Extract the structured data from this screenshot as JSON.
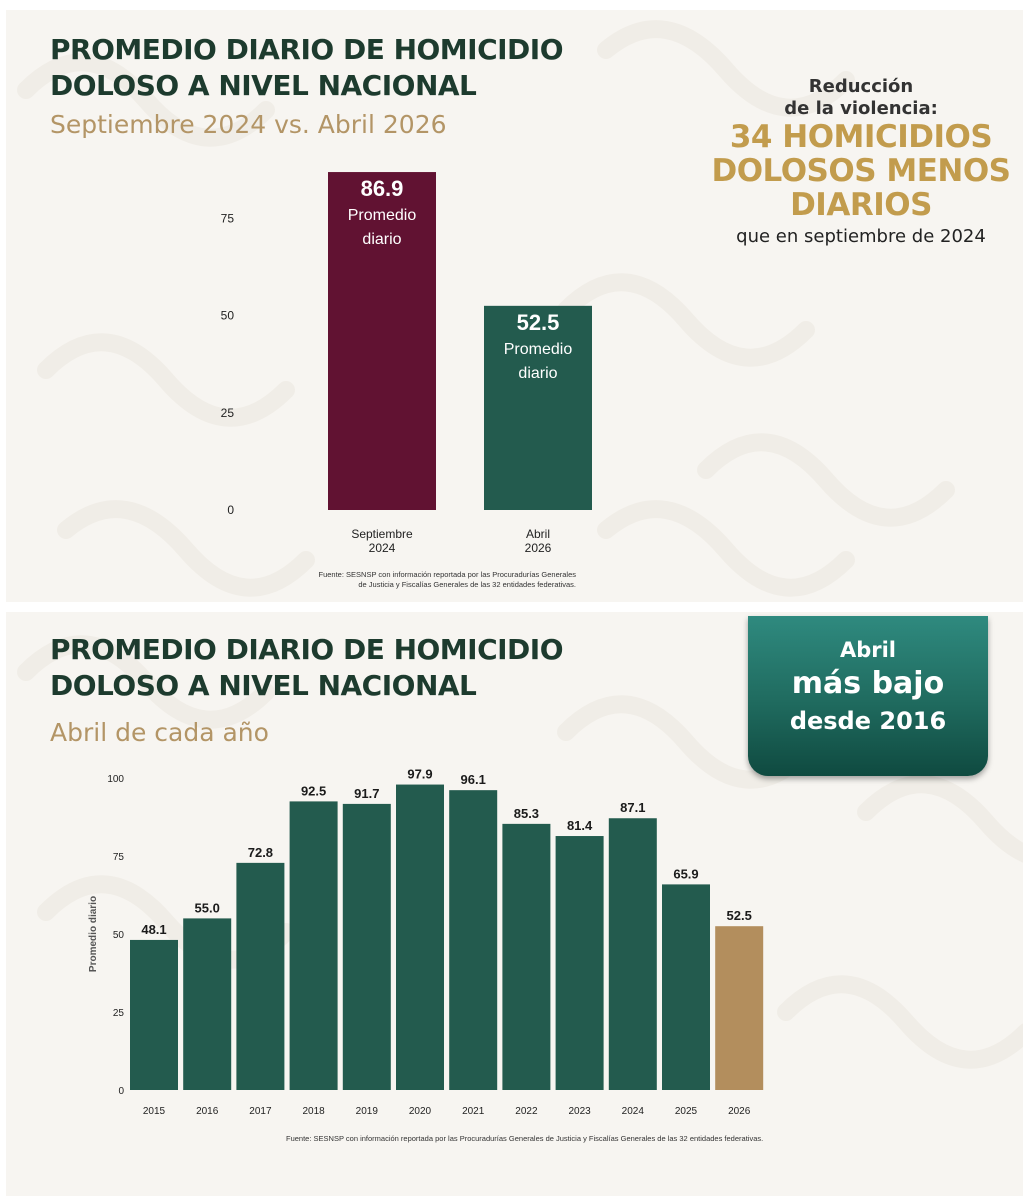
{
  "panel1": {
    "title_line1": "PROMEDIO DIARIO DE HOMICIDIO",
    "title_line2": "DOLOSO A NIVEL NACIONAL",
    "subtitle": "Septiembre 2024 vs. Abril 2026",
    "callout": {
      "line1": "Reducción",
      "line2": "de la violencia:",
      "big1": "34 HOMICIDIOS",
      "big2": "DOLOSOS MENOS",
      "big3": "DIARIOS",
      "line3": "que en septiembre de 2024"
    },
    "source_line1": "Fuente: SESNSP con información reportada por las Procuradurías Generales",
    "source_line2": "de Justicia y Fiscalías Generales de las 32 entidades federativas."
  },
  "panel2": {
    "title_line1": "PROMEDIO DIARIO DE HOMICIDIO",
    "title_line2": "DOLOSO A NIVEL NACIONAL",
    "subtitle": "Abril de cada año",
    "badge": {
      "line1": "Abril",
      "line2": "más bajo",
      "line3": "desde 2016"
    },
    "source": "Fuente: SESNSP con información reportada por las Procuradurías Generales de Justicia y Fiscalías Generales de las 32 entidades federativas."
  },
  "colors": {
    "maroon": "#611232",
    "green": "#235b4e",
    "gold": "#b38e5d",
    "title": "#1d3b2e"
  },
  "chart_data": [
    {
      "type": "bar",
      "categories": [
        [
          "Septiembre",
          "2024"
        ],
        [
          "Abril",
          "2026"
        ]
      ],
      "values": [
        86.9,
        52.5
      ],
      "bar_labels": [
        "Promedio",
        "diario"
      ],
      "bar_colors": [
        "#611232",
        "#235b4e"
      ],
      "yticks": [
        0,
        25,
        50,
        75
      ],
      "ylim": [
        0,
        90
      ],
      "grid": false
    },
    {
      "type": "bar",
      "categories": [
        "2015",
        "2016",
        "2017",
        "2018",
        "2019",
        "2020",
        "2021",
        "2022",
        "2023",
        "2024",
        "2025",
        "2026"
      ],
      "values": [
        48.1,
        55.0,
        72.8,
        92.5,
        91.7,
        97.9,
        96.1,
        85.3,
        81.4,
        87.1,
        65.9,
        52.5
      ],
      "value_labels": [
        "48.1",
        "55.0",
        "72.8",
        "92.5",
        "91.7",
        "97.9",
        "96.1",
        "85.3",
        "81.4",
        "87.1",
        "65.9",
        "52.5"
      ],
      "highlight": "2026",
      "ylabel": "Promedio diario",
      "yticks": [
        0,
        25,
        50,
        75,
        100
      ],
      "ylim": [
        0,
        100
      ],
      "grid": false
    }
  ]
}
